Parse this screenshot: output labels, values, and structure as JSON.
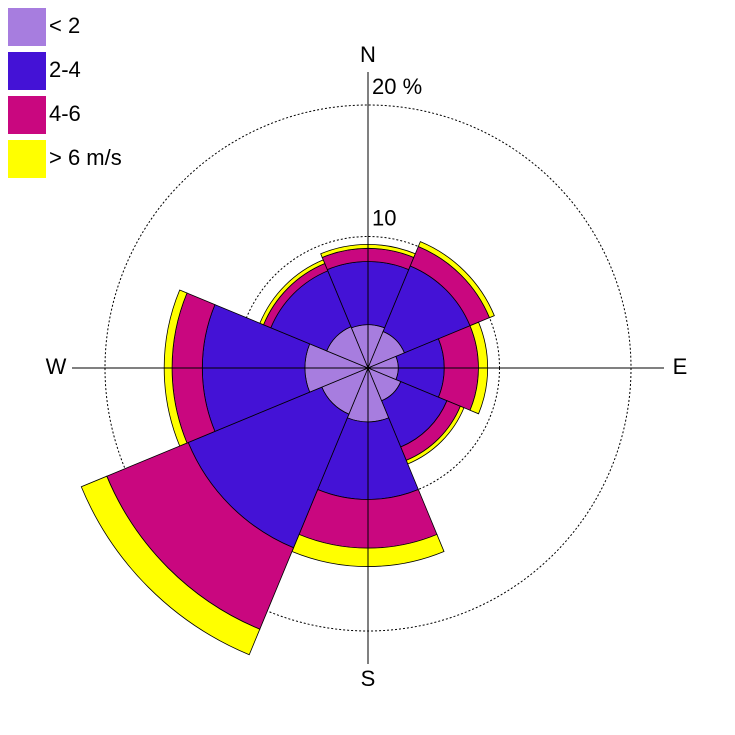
{
  "chart_data": {
    "type": "windrose",
    "categories": [
      "N",
      null,
      "E",
      null,
      "S",
      null,
      "W",
      null
    ],
    "series": [
      {
        "name": "< 2",
        "color": "#a77ddf",
        "values": [
          3.3,
          3.0,
          2.3,
          2.7,
          4.1,
          3.8,
          4.8,
          3.4
        ]
      },
      {
        "name": "2-4",
        "color": "#4412d6",
        "values": [
          4.8,
          5.4,
          3.5,
          3.8,
          5.9,
          11.0,
          7.8,
          4.6
        ]
      },
      {
        "name": "4-6",
        "color": "#c9077f",
        "values": [
          1.0,
          1.6,
          2.6,
          1.1,
          3.7,
          6.7,
          2.3,
          0.6
        ]
      },
      {
        "name": "> 6 m/s",
        "color": "#ffff00",
        "values": [
          0.3,
          0.4,
          0.7,
          0.3,
          1.4,
          2.1,
          0.6,
          0.3
        ]
      }
    ],
    "rlim": [
      0,
      20
    ],
    "rticks": [
      10,
      {
        "value": 20,
        "label": "20 %"
      }
    ],
    "grid": true
  }
}
